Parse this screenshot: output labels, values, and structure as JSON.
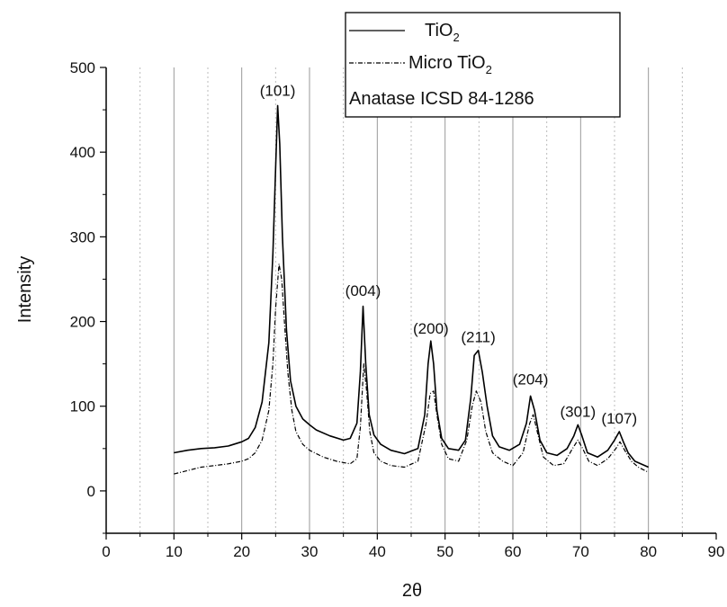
{
  "chart_data": {
    "type": "line",
    "xlabel": "2θ",
    "ylabel": "Intensity",
    "xlim": [
      0,
      90
    ],
    "ylim": [
      -50,
      500
    ],
    "x_ticks": [
      "0",
      "10",
      "20",
      "30",
      "40",
      "50",
      "60",
      "70",
      "80",
      "90"
    ],
    "y_ticks": [
      "0",
      "100",
      "200",
      "300",
      "400",
      "500"
    ],
    "grid": {
      "major_x": [
        10,
        20,
        30,
        40,
        50,
        60,
        70,
        80
      ],
      "minor_x": [
        5,
        15,
        25,
        35,
        45,
        55,
        65,
        75,
        85
      ]
    },
    "legend": {
      "position": "top",
      "entries": [
        {
          "name": "TiO",
          "subscript": "2",
          "style": "solid"
        },
        {
          "name": "Micro TiO",
          "subscript": "2",
          "style": "dash-dot"
        },
        {
          "name": "Anatase ICSD  84-1286",
          "subscript": "",
          "style": "none"
        }
      ]
    },
    "peak_labels": [
      {
        "text": "(101)",
        "x": 25.3,
        "y": 458
      },
      {
        "text": "(004)",
        "x": 37.9,
        "y": 222
      },
      {
        "text": "(200)",
        "x": 47.9,
        "y": 177
      },
      {
        "text": "(211)",
        "x": 54.9,
        "y": 167
      },
      {
        "text": "(204)",
        "x": 62.6,
        "y": 117
      },
      {
        "text": "(301)",
        "x": 69.6,
        "y": 79
      },
      {
        "text": "(107)",
        "x": 75.7,
        "y": 71
      }
    ],
    "series": [
      {
        "name": "TiO2",
        "style": "solid",
        "x": [
          10,
          12,
          14,
          16,
          18,
          20,
          21,
          22,
          23,
          24,
          24.6,
          25.0,
          25.3,
          25.6,
          26.0,
          26.6,
          27.2,
          28,
          29,
          30,
          31,
          33,
          35,
          36,
          37,
          37.5,
          37.9,
          38.3,
          38.8,
          39.5,
          40.5,
          42,
          44,
          46,
          47,
          47.5,
          47.9,
          48.3,
          48.8,
          49.5,
          50.5,
          52,
          53,
          53.8,
          54.3,
          54.9,
          55.5,
          56.2,
          57,
          58,
          59.5,
          61,
          62,
          62.6,
          63.2,
          64,
          65,
          66.5,
          68,
          69,
          69.6,
          70.2,
          71,
          72.5,
          74,
          75,
          75.7,
          76.3,
          77,
          78,
          80
        ],
        "y": [
          45,
          48,
          50,
          51,
          53,
          58,
          62,
          75,
          105,
          175,
          280,
          380,
          455,
          410,
          300,
          190,
          130,
          100,
          85,
          78,
          72,
          65,
          60,
          62,
          80,
          140,
          218,
          150,
          90,
          66,
          55,
          48,
          44,
          50,
          90,
          150,
          177,
          150,
          95,
          62,
          50,
          48,
          60,
          110,
          160,
          166,
          140,
          100,
          65,
          52,
          48,
          55,
          80,
          112,
          95,
          60,
          45,
          42,
          50,
          65,
          78,
          65,
          45,
          40,
          48,
          60,
          70,
          58,
          45,
          35,
          28
        ]
      },
      {
        "name": "Micro TiO2",
        "style": "dash-dot",
        "x": [
          10,
          12,
          14,
          16,
          18,
          20,
          21,
          22,
          23,
          24,
          24.6,
          25.0,
          25.5,
          25.9,
          26.3,
          26.8,
          27.4,
          28,
          29,
          30,
          32,
          34,
          36,
          37,
          37.5,
          38.0,
          38.4,
          38.9,
          39.5,
          40.5,
          42,
          44,
          46,
          47.2,
          47.8,
          48.3,
          48.8,
          49.5,
          50.5,
          52,
          53.2,
          54.0,
          54.6,
          55.3,
          56.0,
          57,
          58.5,
          60,
          61.5,
          62.5,
          63.0,
          63.6,
          64.5,
          66,
          67.5,
          68.8,
          69.6,
          70.3,
          71.2,
          72.5,
          74,
          75.2,
          75.8,
          76.5,
          77.5,
          78.5,
          80
        ],
        "y": [
          20,
          24,
          28,
          30,
          32,
          35,
          38,
          45,
          60,
          95,
          150,
          215,
          268,
          250,
          200,
          140,
          95,
          70,
          55,
          48,
          40,
          35,
          32,
          38,
          75,
          150,
          120,
          70,
          45,
          35,
          30,
          28,
          35,
          80,
          115,
          118,
          90,
          55,
          38,
          35,
          60,
          100,
          118,
          105,
          70,
          45,
          35,
          30,
          45,
          80,
          90,
          70,
          40,
          30,
          32,
          50,
          60,
          50,
          35,
          30,
          38,
          50,
          58,
          48,
          35,
          28,
          22
        ]
      }
    ]
  }
}
